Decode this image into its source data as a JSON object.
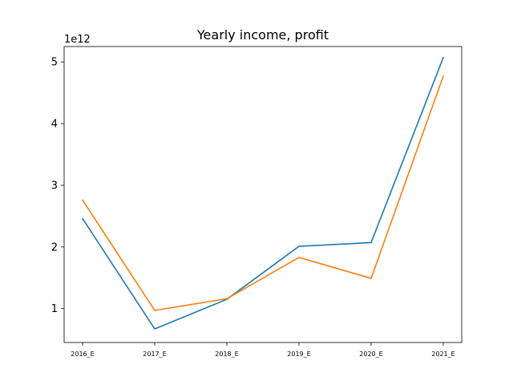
{
  "chart_data": {
    "type": "line",
    "title": "Yearly income, profit",
    "xlabel": "",
    "ylabel": "",
    "y_offset_label": "1e12",
    "categories": [
      "2016_E",
      "2017_E",
      "2018_E",
      "2019_E",
      "2020_E",
      "2021_E"
    ],
    "series": [
      {
        "values": [
          2.46,
          0.67,
          1.15,
          2.01,
          2.07,
          5.07
        ],
        "color": "#1f77b4"
      },
      {
        "values": [
          2.76,
          0.97,
          1.16,
          1.83,
          1.49,
          4.77
        ],
        "color": "#ff7f0e"
      }
    ],
    "ylim": [
      0.45,
      5.25
    ],
    "yticks": [
      1,
      2,
      3,
      4,
      5
    ],
    "grid": false,
    "legend": false
  }
}
